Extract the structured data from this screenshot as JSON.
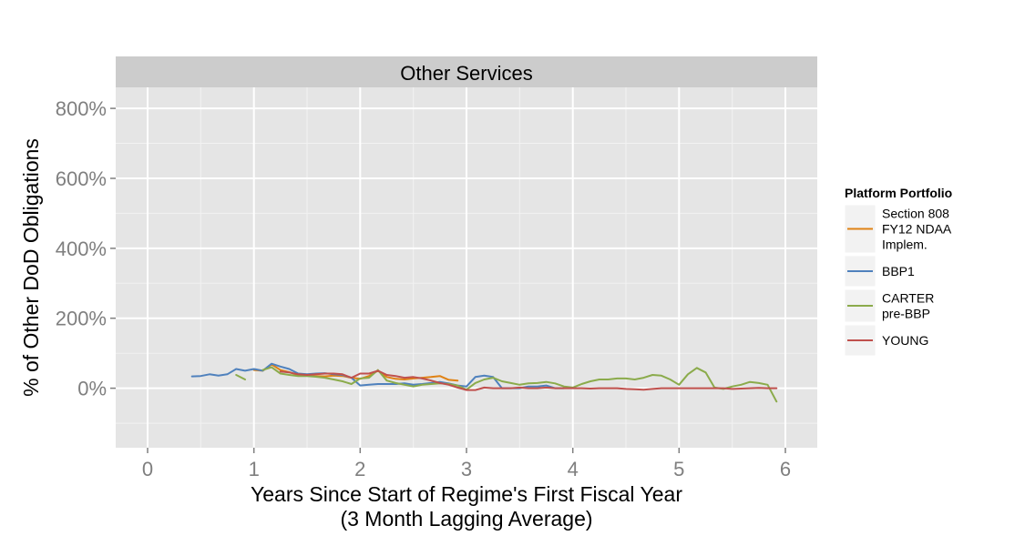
{
  "chart_data": {
    "type": "line",
    "facet_title": "Other Services",
    "xlabel": [
      "Years Since Start of Regime's First Fiscal Year",
      "(3 Month Lagging Average)"
    ],
    "ylabel": "% of Other DoD Obligations",
    "xlim": [
      -0.3,
      6.3
    ],
    "ylim": [
      -170,
      860
    ],
    "x_ticks": [
      0,
      1,
      2,
      3,
      4,
      5,
      6
    ],
    "x_tick_labels": [
      "0",
      "1",
      "2",
      "3",
      "4",
      "5",
      "6"
    ],
    "y_ticks": [
      0,
      200,
      400,
      600,
      800
    ],
    "y_tick_labels": [
      "0%",
      "200%",
      "400%",
      "600%",
      "800%"
    ],
    "legend": {
      "title": "Platform Portfolio",
      "position": "right",
      "entries": [
        {
          "series": "Section 808 FY12 NDAA Implem.",
          "lines": [
            "Section 808",
            "FY12 NDAA",
            "Implem."
          ]
        },
        {
          "series": "BBP1",
          "lines": [
            "BBP1"
          ]
        },
        {
          "series": "CARTER pre-BBP",
          "lines": [
            "CARTER",
            "pre-BBP"
          ]
        },
        {
          "series": "YOUNG",
          "lines": [
            "YOUNG"
          ]
        }
      ]
    },
    "series": [
      {
        "name": "Section 808 FY12 NDAA Implem.",
        "color": "#e08214",
        "segments": [
          {
            "x": [
              1.0,
              1.083,
              1.167,
              1.25,
              1.333,
              1.417,
              1.5,
              1.583,
              1.667,
              1.75,
              1.833,
              1.917,
              2.0,
              2.083,
              2.167,
              2.25,
              2.333,
              2.417,
              2.5,
              2.583,
              2.667,
              2.75,
              2.833,
              2.917
            ],
            "y": [
              52,
              50,
              68,
              52,
              46,
              38,
              36,
              35,
              34,
              36,
              35,
              30,
              27,
              35,
              50,
              32,
              27,
              25,
              28,
              30,
              32,
              35,
              24,
              22
            ]
          }
        ]
      },
      {
        "name": "BBP1",
        "color": "#4f81bd",
        "segments": [
          {
            "x": [
              0.417,
              0.5,
              0.583,
              0.667,
              0.75,
              0.833,
              0.917,
              1.0,
              1.083,
              1.167,
              1.25,
              1.333,
              1.417,
              1.5,
              1.583,
              1.667,
              1.75,
              1.833,
              1.917,
              2.0,
              2.083,
              2.167,
              2.25,
              2.333,
              2.417,
              2.5,
              2.583,
              2.667,
              2.75,
              2.833,
              2.917,
              3.0,
              3.083,
              3.167,
              3.25,
              3.333,
              3.417,
              3.5,
              3.583,
              3.667,
              3.75,
              3.833,
              3.917
            ],
            "y": [
              34,
              35,
              40,
              36,
              40,
              55,
              50,
              55,
              50,
              70,
              62,
              55,
              42,
              40,
              42,
              43,
              40,
              38,
              30,
              8,
              10,
              12,
              12,
              12,
              14,
              10,
              12,
              15,
              18,
              14,
              8,
              5,
              32,
              36,
              32,
              0,
              0,
              0,
              5,
              5,
              8,
              0,
              0
            ]
          }
        ]
      },
      {
        "name": "CARTER pre-BBP",
        "color": "#8bab4b",
        "segments": [
          {
            "x": [
              0.833,
              0.917
            ],
            "y": [
              38,
              25
            ]
          },
          {
            "x": [
              1.083,
              1.167,
              1.25,
              1.333,
              1.417,
              1.5,
              1.583,
              1.667,
              1.75,
              1.833,
              1.917,
              2.0,
              2.083,
              2.167,
              2.25,
              2.333,
              2.417,
              2.5,
              2.583,
              2.667,
              2.75,
              2.833,
              2.917,
              3.0,
              3.083,
              3.167,
              3.25,
              3.333,
              3.417,
              3.5,
              3.583,
              3.667,
              3.75,
              3.833,
              3.917,
              4.0,
              4.083,
              4.167,
              4.25,
              4.333,
              4.417,
              4.5,
              4.583,
              4.667,
              4.75,
              4.833,
              4.917,
              5.0,
              5.083,
              5.167,
              5.25,
              5.333,
              5.417,
              5.5,
              5.583,
              5.667,
              5.75,
              5.833,
              5.917
            ],
            "y": [
              52,
              60,
              42,
              38,
              35,
              35,
              33,
              30,
              25,
              20,
              12,
              28,
              30,
              52,
              22,
              15,
              10,
              5,
              10,
              12,
              14,
              12,
              8,
              -4,
              15,
              25,
              30,
              20,
              15,
              10,
              14,
              15,
              18,
              14,
              5,
              2,
              12,
              20,
              25,
              25,
              28,
              28,
              25,
              30,
              38,
              36,
              25,
              10,
              40,
              58,
              45,
              2,
              -2,
              5,
              10,
              18,
              15,
              10,
              -38
            ]
          }
        ]
      },
      {
        "name": "YOUNG",
        "color": "#c0504d",
        "segments": [
          {
            "x": [
              1.25,
              1.333,
              1.417,
              1.5,
              1.583,
              1.667,
              1.75,
              1.833,
              1.917,
              2.0,
              2.083,
              2.167,
              2.25,
              2.333,
              2.417,
              2.5,
              2.583,
              2.667,
              2.75,
              2.833,
              2.917,
              3.0,
              3.083,
              3.167,
              3.25,
              3.333,
              3.417,
              3.5,
              3.583,
              3.667,
              3.75,
              3.833,
              3.917,
              4.0,
              4.083,
              4.167,
              4.25,
              4.333,
              4.417,
              4.5,
              4.583,
              4.667,
              4.75,
              4.833,
              4.917,
              5.0,
              5.083,
              5.167,
              5.25,
              5.333,
              5.417,
              5.5,
              5.583,
              5.667,
              5.75,
              5.833,
              5.917
            ],
            "y": [
              48,
              45,
              40,
              38,
              40,
              42,
              42,
              40,
              30,
              42,
              42,
              50,
              38,
              35,
              30,
              32,
              28,
              22,
              15,
              10,
              2,
              -5,
              -5,
              2,
              0,
              0,
              0,
              2,
              0,
              0,
              2,
              0,
              0,
              0,
              0,
              -1,
              0,
              0,
              0,
              -2,
              -3,
              -4,
              -2,
              0,
              0,
              0,
              0,
              0,
              0,
              0,
              0,
              -2,
              -1,
              0,
              1,
              0,
              0
            ]
          }
        ]
      }
    ]
  }
}
